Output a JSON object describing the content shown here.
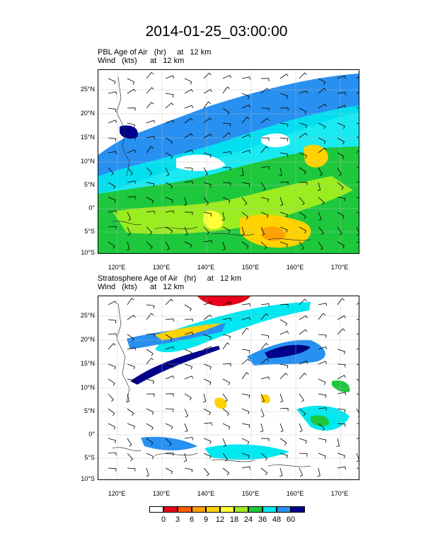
{
  "title": "2014-01-25_03:00:00",
  "panels": [
    {
      "field_line": "PBL Age of Air   (hr)     at   12 km",
      "wind_line": "Wind   (kts)      at   12 km"
    },
    {
      "field_line": "Stratosphere Age of Air   (hr)     at   12 km",
      "wind_line": "Wind   (kts)      at   12 km"
    }
  ],
  "lat_labels": [
    "25°N",
    "20°N",
    "15°N",
    "10°N",
    "5°N",
    "0°",
    "5°S",
    "10°S"
  ],
  "lon_labels": [
    "120°E",
    "130°E",
    "140°E",
    "150°E",
    "160°E",
    "170°E"
  ],
  "legend": {
    "labels": [
      "0",
      "3",
      "6",
      "9",
      "12",
      "18",
      "24",
      "36",
      "48",
      "60"
    ],
    "colors": [
      "#ffffff",
      "#e8001c",
      "#ff5a00",
      "#ff9f00",
      "#ffd200",
      "#ffff3a",
      "#9bec20",
      "#1ec83c",
      "#00e8f0",
      "#2890f0",
      "#00008c"
    ]
  },
  "chart_data": {
    "type": "map",
    "projection": "lat-lon",
    "lon_range": [
      116,
      174
    ],
    "lat_range": [
      -10,
      29
    ],
    "contour_levels_hr": [
      0,
      3,
      6,
      9,
      12,
      18,
      24,
      36,
      48,
      60
    ]
  }
}
